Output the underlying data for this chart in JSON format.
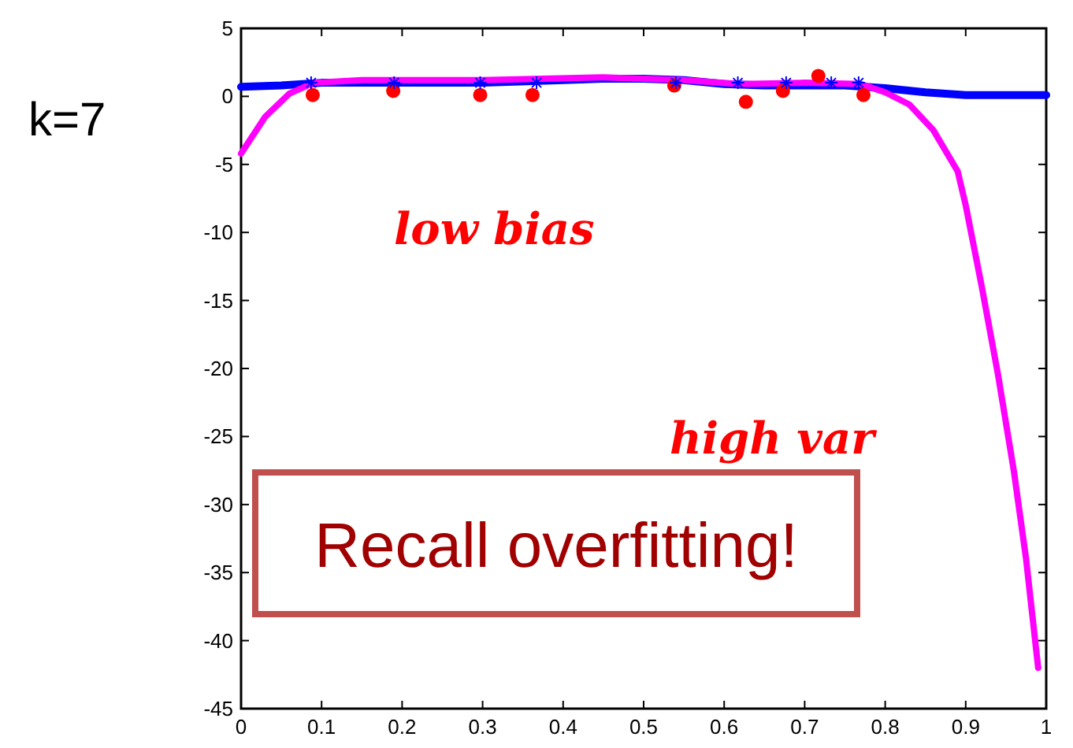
{
  "chart_data": {
    "type": "line",
    "xlim": [
      0,
      1
    ],
    "ylim": [
      -45,
      5
    ],
    "xticks": [
      0,
      0.1,
      0.2,
      0.3,
      0.4,
      0.5,
      0.6,
      0.7,
      0.8,
      0.9,
      1
    ],
    "yticks": [
      -45,
      -40,
      -35,
      -30,
      -25,
      -20,
      -15,
      -10,
      -5,
      0,
      5
    ],
    "grid": false,
    "annotations": [
      "k=7",
      "low bias",
      "high var",
      "Recall overfitting!"
    ],
    "series": [
      {
        "color": "#0000ff",
        "marker": "none",
        "x": [
          0,
          0.05,
          0.1,
          0.2,
          0.3,
          0.4,
          0.45,
          0.5,
          0.55,
          0.6,
          0.65,
          0.7,
          0.75,
          0.8,
          0.85,
          0.9,
          0.95,
          1
        ],
        "values": [
          0.7,
          0.8,
          1.0,
          1.0,
          1.0,
          1.2,
          1.3,
          1.3,
          1.2,
          0.9,
          0.8,
          0.8,
          0.8,
          0.6,
          0.3,
          0.1,
          0.1,
          0.1
        ]
      },
      {
        "color": "#ff00ff",
        "marker": "none",
        "x": [
          0,
          0.03,
          0.06,
          0.09,
          0.15,
          0.3,
          0.45,
          0.55,
          0.62,
          0.7,
          0.77,
          0.8,
          0.83,
          0.86,
          0.89,
          0.9,
          0.92,
          0.94,
          0.96,
          0.975,
          0.99
        ],
        "values": [
          -4.2,
          -1.5,
          0.2,
          1.0,
          1.2,
          1.2,
          1.4,
          1.2,
          0.9,
          1.0,
          0.9,
          0.3,
          -0.6,
          -2.5,
          -5.5,
          -8,
          -14,
          -20.4,
          -27.6,
          -34,
          -42
        ]
      },
      {
        "type": "scatter",
        "color": "#0000ff",
        "marker": "cross",
        "x": [
          0.087,
          0.19,
          0.297,
          0.367,
          0.54,
          0.617,
          0.677,
          0.733,
          0.767
        ],
        "values": [
          1,
          1,
          1,
          1,
          1,
          1,
          1,
          1,
          1
        ]
      },
      {
        "type": "scatter",
        "color": "#ff0000",
        "marker": "circle",
        "x": [
          0.089,
          0.189,
          0.297,
          0.362,
          0.538,
          0.627,
          0.673,
          0.717,
          0.773
        ],
        "values": [
          0.1,
          0.4,
          0.1,
          0.1,
          0.8,
          -0.4,
          0.4,
          1.5,
          0.1
        ]
      }
    ]
  }
}
